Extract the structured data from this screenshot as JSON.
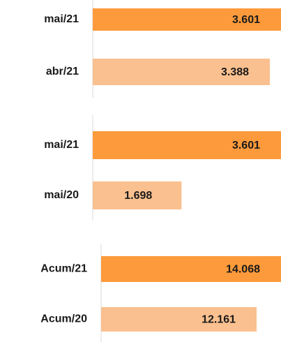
{
  "chart_data": [
    {
      "type": "bar",
      "orientation": "horizontal",
      "categories": [
        "mai/21",
        "abr/21"
      ],
      "values": [
        3601,
        3388
      ],
      "value_labels": [
        "3.601",
        "3.388"
      ],
      "colors": [
        "#fd9a3b",
        "#fac08f"
      ]
    },
    {
      "type": "bar",
      "orientation": "horizontal",
      "categories": [
        "mai/21",
        "mai/20"
      ],
      "values": [
        3601,
        1698
      ],
      "value_labels": [
        "3.601",
        "1.698"
      ],
      "colors": [
        "#fd9a3b",
        "#fac08f"
      ]
    },
    {
      "type": "bar",
      "orientation": "horizontal",
      "categories": [
        "Acum/21",
        "Acum/20"
      ],
      "values": [
        14068,
        12161
      ],
      "value_labels": [
        "14.068",
        "12.161"
      ],
      "colors": [
        "#fd9a3b",
        "#fac08f"
      ]
    }
  ]
}
